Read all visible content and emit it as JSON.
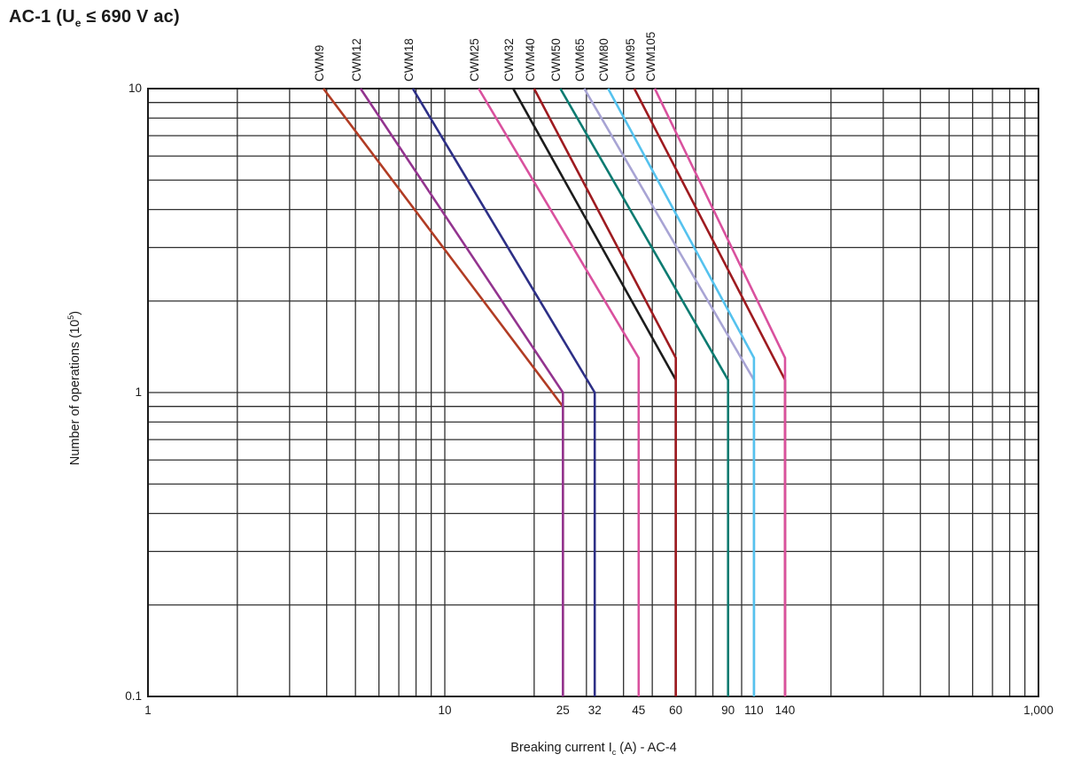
{
  "title": {
    "pre": "AC-1 (U",
    "sub": "e",
    "post": " ≤ 690 V ac)"
  },
  "axis_titles": {
    "x": {
      "pre": "Breaking current I",
      "sub": "c",
      "post": " (A) - AC-4"
    },
    "y": {
      "pre": "Number of operations (10",
      "sup": "5",
      "post": ")"
    }
  },
  "chart_data": {
    "type": "line",
    "title": "AC-1 (Ue ≤ 690 V ac)",
    "xlabel": "Breaking current Ic (A) - AC-4",
    "ylabel": "Number of operations (10^5)",
    "x_axis": {
      "scale": "log",
      "min": 1,
      "max": 1000,
      "grid": true,
      "ticks": [
        {
          "value": 1,
          "label": "1"
        },
        {
          "value": 10,
          "label": "10"
        },
        {
          "value": 25,
          "label": "25"
        },
        {
          "value": 32,
          "label": "32"
        },
        {
          "value": 45,
          "label": "45"
        },
        {
          "value": 60,
          "label": "60"
        },
        {
          "value": 90,
          "label": "90"
        },
        {
          "value": 110,
          "label": "110"
        },
        {
          "value": 140,
          "label": "140"
        },
        {
          "value": 1000,
          "label": "1,000"
        }
      ]
    },
    "y_axis": {
      "scale": "log",
      "min": 0.1,
      "max": 10,
      "grid": true,
      "ticks": [
        {
          "value": 10,
          "label": "10"
        },
        {
          "value": 1,
          "label": "1"
        },
        {
          "value": 0.1,
          "label": "0.1"
        }
      ]
    },
    "legend_position": "labels-above-curves",
    "series": [
      {
        "name": "CWM9",
        "color": "#B13C24",
        "points": [
          [
            3.9,
            10
          ],
          [
            25,
            0.9
          ],
          [
            25,
            0.1
          ]
        ]
      },
      {
        "name": "CWM12",
        "color": "#93348F",
        "points": [
          [
            5.2,
            10
          ],
          [
            25,
            1.0
          ],
          [
            25,
            0.1
          ]
        ]
      },
      {
        "name": "CWM18",
        "color": "#2D2F86",
        "points": [
          [
            7.8,
            10
          ],
          [
            32,
            1.0
          ],
          [
            32,
            0.1
          ]
        ]
      },
      {
        "name": "CWM25",
        "color": "#D9519E",
        "points": [
          [
            13,
            10
          ],
          [
            45,
            1.3
          ],
          [
            45,
            0.1
          ]
        ]
      },
      {
        "name": "CWM32",
        "color": "#1C1C1C",
        "points": [
          [
            17,
            10
          ],
          [
            60,
            1.1
          ],
          [
            60,
            0.1
          ]
        ]
      },
      {
        "name": "CWM40",
        "color": "#9E1B20",
        "points": [
          [
            20,
            10
          ],
          [
            60,
            1.3
          ],
          [
            60,
            0.1
          ]
        ]
      },
      {
        "name": "CWM50",
        "color": "#0C7B71",
        "points": [
          [
            24.5,
            10
          ],
          [
            90,
            1.1
          ],
          [
            90,
            0.1
          ]
        ]
      },
      {
        "name": "CWM65",
        "color": "#A8A4D4",
        "points": [
          [
            29.5,
            10
          ],
          [
            110,
            1.1
          ],
          [
            110,
            0.1
          ]
        ]
      },
      {
        "name": "CWM80",
        "color": "#55C2EE",
        "points": [
          [
            35.5,
            10
          ],
          [
            110,
            1.3
          ],
          [
            110,
            0.1
          ]
        ]
      },
      {
        "name": "CWM95",
        "color": "#9E1B20",
        "points": [
          [
            43.5,
            10
          ],
          [
            140,
            1.1
          ],
          [
            140,
            0.1
          ]
        ]
      },
      {
        "name": "CWM105",
        "color": "#D9519E",
        "points": [
          [
            51,
            10
          ],
          [
            140,
            1.3
          ],
          [
            140,
            0.1
          ]
        ]
      }
    ],
    "colors": {
      "grid": "#2f2f2f",
      "border": "#1a1a1a",
      "background": "#ffffff",
      "text": "#1a1a1a"
    }
  }
}
